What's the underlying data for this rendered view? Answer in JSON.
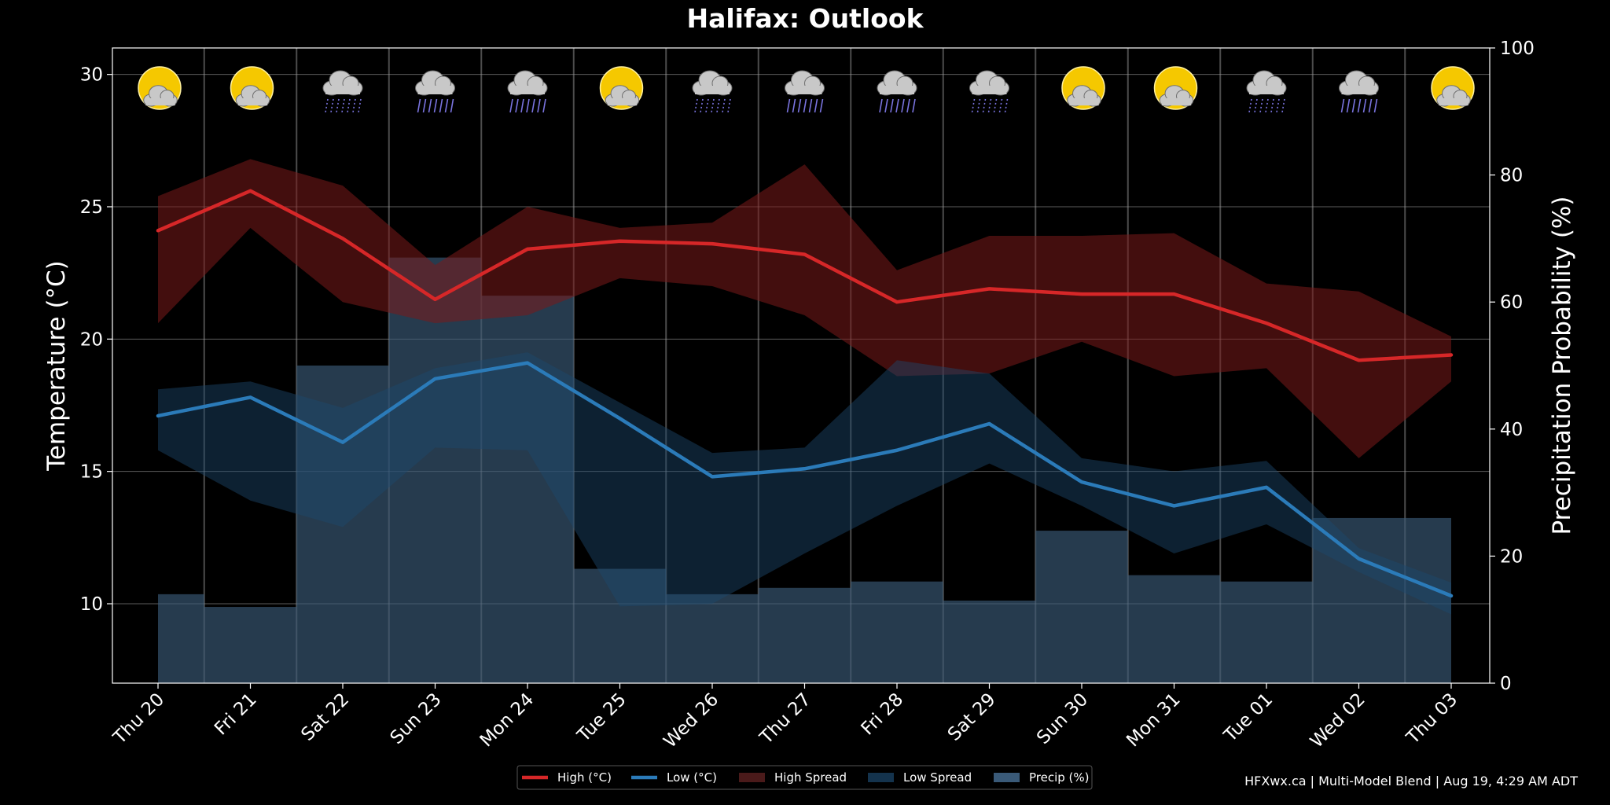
{
  "chart_data": {
    "type": "line",
    "title": "Halifax: Outlook",
    "categories": [
      "Thu 20",
      "Fri 21",
      "Sat 22",
      "Sun 23",
      "Mon 24",
      "Tue 25",
      "Wed 26",
      "Thu 27",
      "Fri 28",
      "Sat 29",
      "Sun 30",
      "Mon 31",
      "Tue 01",
      "Wed 02",
      "Thu 03"
    ],
    "ylabel": "Temperature (°C)",
    "y2label": "Precipitation Probability (%)",
    "ylim": [
      7,
      31
    ],
    "y2lim": [
      0,
      100
    ],
    "yticks": [
      10,
      15,
      20,
      25,
      30
    ],
    "y2ticks": [
      0,
      20,
      40,
      60,
      80,
      100
    ],
    "grid": true,
    "legend_position": "bottom-center",
    "weather_icons": [
      "sun-cloud",
      "sun-cloud",
      "cloud-drizzle",
      "cloud-rain",
      "cloud-rain",
      "sun-cloud",
      "cloud-drizzle",
      "cloud-rain",
      "cloud-rain",
      "cloud-drizzle",
      "sun-cloud",
      "sun-cloud",
      "cloud-drizzle",
      "cloud-rain",
      "sun-cloud"
    ],
    "series": [
      {
        "name": "High (°C)",
        "type": "line",
        "color": "#d62728",
        "values": [
          24.1,
          25.6,
          23.8,
          21.5,
          23.4,
          23.7,
          23.6,
          23.2,
          21.4,
          21.9,
          21.7,
          21.7,
          20.6,
          19.2,
          19.4
        ]
      },
      {
        "name": "Low (°C)",
        "type": "line",
        "color": "#2b7bb9",
        "values": [
          17.1,
          17.8,
          16.1,
          18.5,
          19.1,
          17.0,
          14.8,
          15.1,
          15.8,
          16.8,
          14.6,
          13.7,
          14.4,
          11.7,
          10.3
        ]
      },
      {
        "name": "High Spread",
        "type": "band",
        "color": "#4a1a1a",
        "upper": [
          25.4,
          26.8,
          25.8,
          22.8,
          25.0,
          24.2,
          24.4,
          26.6,
          22.6,
          23.9,
          23.9,
          24.0,
          22.1,
          21.8,
          20.1
        ],
        "lower": [
          20.6,
          24.2,
          21.4,
          20.6,
          20.9,
          22.3,
          22.0,
          20.9,
          18.6,
          18.7,
          19.9,
          18.6,
          18.9,
          15.5,
          18.4
        ]
      },
      {
        "name": "Low Spread",
        "type": "band",
        "color": "#14334d",
        "upper": [
          18.1,
          18.4,
          17.4,
          18.9,
          19.5,
          17.6,
          15.7,
          15.9,
          19.2,
          18.7,
          15.5,
          15.0,
          15.4,
          12.1,
          10.8
        ],
        "lower": [
          15.8,
          13.9,
          12.9,
          15.9,
          15.8,
          9.9,
          10.0,
          11.9,
          13.7,
          15.3,
          13.7,
          11.9,
          13.0,
          11.2,
          9.6
        ]
      },
      {
        "name": "Precip (%)",
        "type": "step-area",
        "axis": "y2",
        "color": "#3a5a78",
        "values": [
          14,
          12,
          50,
          67,
          61,
          18,
          14,
          15,
          16,
          13,
          24,
          17,
          16,
          26,
          26
        ]
      }
    ],
    "footer": "HFXwx.ca | Multi-Model Blend | Aug 19, 4:29 AM ADT"
  }
}
